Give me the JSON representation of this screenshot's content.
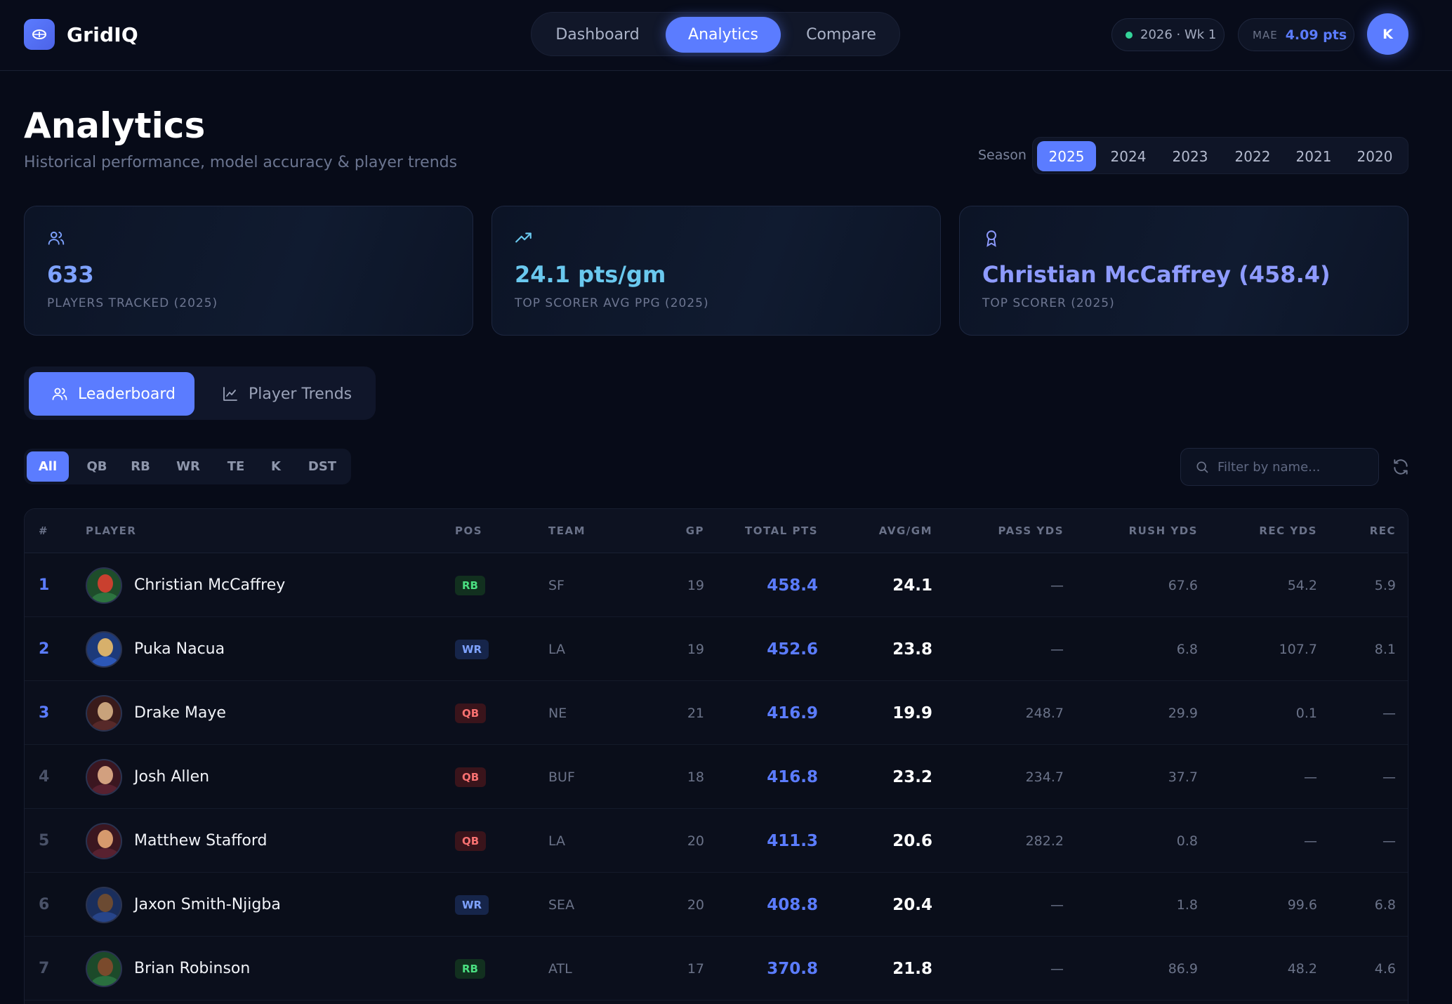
{
  "brand": {
    "name": "GridIQ"
  },
  "nav": {
    "tabs": [
      "Dashboard",
      "Analytics",
      "Compare"
    ],
    "active": "Analytics"
  },
  "status": {
    "week": "2026 · Wk 1",
    "mae_label": "MAE",
    "mae_value": "4.09 pts"
  },
  "user": {
    "initial": "K"
  },
  "header": {
    "title": "Analytics",
    "subtitle": "Historical performance, model accuracy & player trends"
  },
  "season": {
    "label": "Season",
    "options": [
      "2025",
      "2024",
      "2023",
      "2022",
      "2021",
      "2020"
    ],
    "active": "2025"
  },
  "cards": [
    {
      "icon": "users-icon",
      "value": "633",
      "label": "PLAYERS TRACKED (2025)",
      "color": "#7ea2ff"
    },
    {
      "icon": "trending-up-icon",
      "value": "24.1 pts/gm",
      "label": "TOP SCORER AVG PPG (2025)",
      "color": "#6ac8ee"
    },
    {
      "icon": "award-icon",
      "value": "Christian McCaffrey (458.4)",
      "label": "TOP SCORER (2025)",
      "color": "#8e9bff"
    }
  ],
  "view_tabs": {
    "leaderboard": "Leaderboard",
    "trends": "Player Trends"
  },
  "positions": [
    "All",
    "QB",
    "RB",
    "WR",
    "TE",
    "K",
    "DST"
  ],
  "search": {
    "placeholder": "Filter by name..."
  },
  "table": {
    "headers": {
      "rank": "#",
      "player": "PLAYER",
      "pos": "POS",
      "team": "TEAM",
      "gp": "GP",
      "total": "TOTAL PTS",
      "avg": "AVG/GM",
      "pass": "PASS YDS",
      "rush": "RUSH YDS",
      "recyds": "REC YDS",
      "rec": "REC"
    },
    "rows": [
      {
        "rank": "1",
        "name": "Christian McCaffrey",
        "pos": "RB",
        "team": "SF",
        "gp": "19",
        "total": "458.4",
        "avg": "24.1",
        "pass": "—",
        "rush": "67.6",
        "recyds": "54.2",
        "rec": "5.9"
      },
      {
        "rank": "2",
        "name": "Puka Nacua",
        "pos": "WR",
        "team": "LA",
        "gp": "19",
        "total": "452.6",
        "avg": "23.8",
        "pass": "—",
        "rush": "6.8",
        "recyds": "107.7",
        "rec": "8.1"
      },
      {
        "rank": "3",
        "name": "Drake Maye",
        "pos": "QB",
        "team": "NE",
        "gp": "21",
        "total": "416.9",
        "avg": "19.9",
        "pass": "248.7",
        "rush": "29.9",
        "recyds": "0.1",
        "rec": "—"
      },
      {
        "rank": "4",
        "name": "Josh Allen",
        "pos": "QB",
        "team": "BUF",
        "gp": "18",
        "total": "416.8",
        "avg": "23.2",
        "pass": "234.7",
        "rush": "37.7",
        "recyds": "—",
        "rec": "—"
      },
      {
        "rank": "5",
        "name": "Matthew Stafford",
        "pos": "QB",
        "team": "LA",
        "gp": "20",
        "total": "411.3",
        "avg": "20.6",
        "pass": "282.2",
        "rush": "0.8",
        "recyds": "—",
        "rec": "—"
      },
      {
        "rank": "6",
        "name": "Jaxon Smith-Njigba",
        "pos": "WR",
        "team": "SEA",
        "gp": "20",
        "total": "408.8",
        "avg": "20.4",
        "pass": "—",
        "rush": "1.8",
        "recyds": "99.6",
        "rec": "6.8"
      },
      {
        "rank": "7",
        "name": "Brian Robinson",
        "pos": "RB",
        "team": "ATL",
        "gp": "17",
        "total": "370.8",
        "avg": "21.8",
        "pass": "—",
        "rush": "86.9",
        "recyds": "48.2",
        "rec": "4.6"
      }
    ]
  },
  "colors": {
    "accent": "#5b7cff",
    "background": "#070b18",
    "rb": "#4ade80",
    "wr": "#7ea2ff",
    "qb": "#f87171"
  }
}
